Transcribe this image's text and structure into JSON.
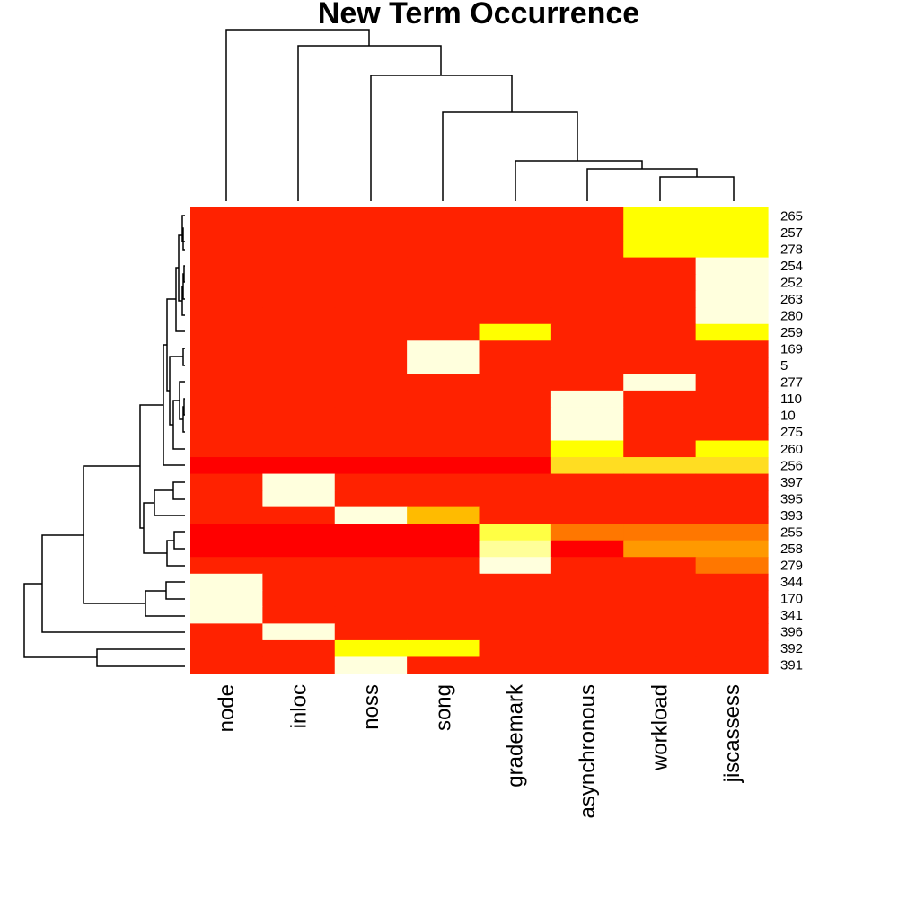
{
  "chart_data": {
    "type": "heatmap",
    "title": "New Term Occurrence",
    "columns": [
      "node",
      "inloc",
      "noss",
      "song",
      "grademark",
      "asynchronous",
      "workload",
      "jiscassess"
    ],
    "rows": [
      "265",
      "257",
      "278",
      "254",
      "252",
      "263",
      "280",
      "259",
      "169",
      "5",
      "277",
      "110",
      "10",
      "275",
      "260",
      "256",
      "397",
      "395",
      "393",
      "255",
      "258",
      "279",
      "344",
      "170",
      "341",
      "396",
      "392",
      "391"
    ],
    "colors": {
      "r": "#FF2200",
      "R": "#FF0000",
      "O": "#FF7700",
      "o": "#FF9900",
      "a": "#FFBB00",
      "Y": "#FFFF00",
      "y": "#FFFF44",
      "l": "#FFFF99",
      "c": "#FFFFDD",
      "g": "#FFDD22"
    },
    "cells": [
      "rrrrrrYY",
      "rrrrrrYY",
      "rrrrrrYY",
      "rrrrrrrc",
      "rrrrrrrc",
      "rrrrrrrc",
      "rrrrrrrc",
      "rrrrYrrY",
      "rrrcrrrr",
      "rrrcrrrr",
      "rrrrrrcr",
      "rrrrrcrr",
      "rrrrrcrr",
      "rrrrrcrr",
      "rrrrrYrY",
      "RRRRRggg",
      "rcrrrrrr",
      "rcrrrrrr",
      "rrcarrrr",
      "RRRRyOOO",
      "RRRRlRoo",
      "rrrrcrrO",
      "crrrrrrr",
      "crrrrrrr",
      "crrrrrrr",
      "rcrrrrrr",
      "rrYYrrrr",
      "rrcrrrrr"
    ]
  }
}
